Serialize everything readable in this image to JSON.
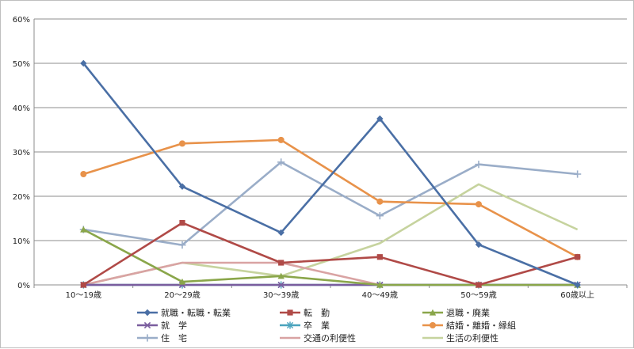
{
  "chart_data": {
    "type": "line",
    "title": "",
    "xlabel": "",
    "ylabel": "",
    "categories": [
      "10～19歳",
      "20～29歳",
      "30～39歳",
      "40～49歳",
      "50～59歳",
      "60歳以上"
    ],
    "ylim": [
      0,
      60
    ],
    "yticks": [
      0,
      10,
      20,
      30,
      40,
      50,
      60
    ],
    "ytick_labels": [
      "0%",
      "10%",
      "20%",
      "30%",
      "40%",
      "50%",
      "60%"
    ],
    "grid": true,
    "legend_position": "bottom",
    "series": [
      {
        "name": "就職・転職・転業",
        "color": "#4a6fa5",
        "marker": "diamond",
        "values": [
          50,
          22.2,
          11.8,
          37.5,
          9.1,
          0
        ]
      },
      {
        "name": "転　勤",
        "color": "#b04a47",
        "marker": "square",
        "values": [
          0,
          14.0,
          5.0,
          6.3,
          0,
          6.3
        ]
      },
      {
        "name": "退職・廃業",
        "color": "#8aa64a",
        "marker": "triangle",
        "values": [
          12.5,
          0.7,
          2.0,
          0,
          0,
          0
        ]
      },
      {
        "name": "就　学",
        "color": "#7a5d9e",
        "marker": "x",
        "values": [
          0,
          0,
          0,
          0,
          0,
          0
        ]
      },
      {
        "name": "卒　業",
        "color": "#4aa3bd",
        "marker": "star",
        "values": [
          0,
          0,
          0,
          0,
          0,
          0
        ]
      },
      {
        "name": "結婚・離婚・縁組",
        "color": "#e8924a",
        "marker": "circle",
        "values": [
          25.0,
          31.9,
          32.7,
          18.8,
          18.2,
          6.3
        ]
      },
      {
        "name": "住　宅",
        "color": "#9aadc8",
        "marker": "plus",
        "values": [
          12.5,
          9.0,
          27.7,
          15.6,
          27.2,
          25.0
        ]
      },
      {
        "name": "交通の利便性",
        "color": "#d9a3a3",
        "marker": "none",
        "values": [
          0,
          5.0,
          5.0,
          0,
          0,
          0
        ]
      },
      {
        "name": "生活の利便性",
        "color": "#c6d39e",
        "marker": "none",
        "values": [
          0,
          5.0,
          2.0,
          9.4,
          22.7,
          12.5
        ]
      }
    ]
  }
}
